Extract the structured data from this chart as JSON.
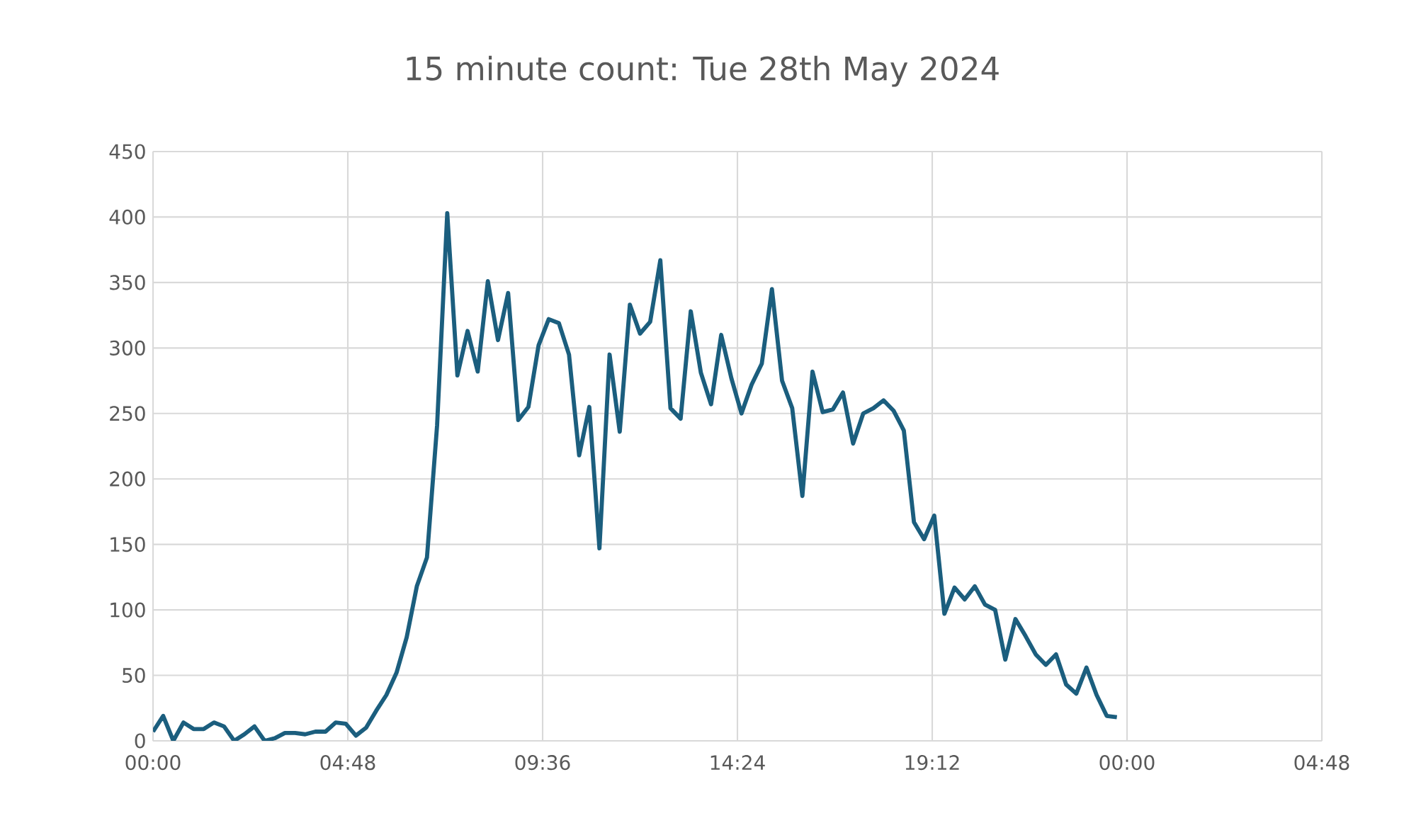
{
  "chart_data": {
    "type": "line",
    "title": "15 minute count: Tue 28th May 2024",
    "x": [
      "2024-05-28T00:00",
      "2024-05-28T00:15",
      "2024-05-28T00:30",
      "2024-05-28T00:45",
      "2024-05-28T01:00",
      "2024-05-28T01:15",
      "2024-05-28T01:30",
      "2024-05-28T01:45",
      "2024-05-28T02:00",
      "2024-05-28T02:15",
      "2024-05-28T02:30",
      "2024-05-28T02:45",
      "2024-05-28T03:00",
      "2024-05-28T03:15",
      "2024-05-28T03:30",
      "2024-05-28T03:45",
      "2024-05-28T04:00",
      "2024-05-28T04:15",
      "2024-05-28T04:30",
      "2024-05-28T04:45",
      "2024-05-28T05:00",
      "2024-05-28T05:15",
      "2024-05-28T05:30",
      "2024-05-28T05:45",
      "2024-05-28T06:00",
      "2024-05-28T06:15",
      "2024-05-28T06:30",
      "2024-05-28T06:45",
      "2024-05-28T07:00",
      "2024-05-28T07:15",
      "2024-05-28T07:30",
      "2024-05-28T07:45",
      "2024-05-28T08:00",
      "2024-05-28T08:15",
      "2024-05-28T08:30",
      "2024-05-28T08:45",
      "2024-05-28T09:00",
      "2024-05-28T09:15",
      "2024-05-28T09:30",
      "2024-05-28T09:45",
      "2024-05-28T10:00",
      "2024-05-28T10:15",
      "2024-05-28T10:30",
      "2024-05-28T10:45",
      "2024-05-28T11:00",
      "2024-05-28T11:15",
      "2024-05-28T11:30",
      "2024-05-28T11:45",
      "2024-05-28T12:00",
      "2024-05-28T12:15",
      "2024-05-28T12:30",
      "2024-05-28T12:45",
      "2024-05-28T13:00",
      "2024-05-28T13:15",
      "2024-05-28T13:30",
      "2024-05-28T13:45",
      "2024-05-28T14:00",
      "2024-05-28T14:15",
      "2024-05-28T14:30",
      "2024-05-28T14:45",
      "2024-05-28T15:00",
      "2024-05-28T15:15",
      "2024-05-28T15:30",
      "2024-05-28T15:45",
      "2024-05-28T16:00",
      "2024-05-28T16:15",
      "2024-05-28T16:30",
      "2024-05-28T16:45",
      "2024-05-28T17:00",
      "2024-05-28T17:15",
      "2024-05-28T17:30",
      "2024-05-28T17:45",
      "2024-05-28T18:00",
      "2024-05-28T18:15",
      "2024-05-28T18:30",
      "2024-05-28T18:45",
      "2024-05-28T19:00",
      "2024-05-28T19:15",
      "2024-05-28T19:30",
      "2024-05-28T19:45",
      "2024-05-28T20:00",
      "2024-05-28T20:15",
      "2024-05-28T20:30",
      "2024-05-28T20:45",
      "2024-05-28T21:00",
      "2024-05-28T21:15",
      "2024-05-28T21:30",
      "2024-05-28T21:45",
      "2024-05-28T22:00",
      "2024-05-28T22:15",
      "2024-05-28T22:30",
      "2024-05-28T22:45",
      "2024-05-28T23:00",
      "2024-05-28T23:15",
      "2024-05-28T23:30",
      "2024-05-28T23:45"
    ],
    "series": [
      {
        "color": "#1b5e7e",
        "values": [
          7,
          19,
          0,
          14,
          9,
          9,
          14,
          11,
          0,
          5,
          11,
          0,
          2,
          6,
          6,
          5,
          7,
          7,
          14,
          13,
          4,
          10,
          23,
          35,
          52,
          79,
          118,
          140,
          241,
          403,
          279,
          313,
          282,
          351,
          306,
          342,
          245,
          255,
          302,
          322,
          319,
          295,
          218,
          255,
          147,
          295,
          236,
          333,
          311,
          320,
          367,
          254,
          246,
          328,
          281,
          257,
          310,
          277,
          250,
          272,
          288,
          345,
          275,
          254,
          187,
          282,
          251,
          253,
          266,
          227,
          250,
          254,
          260,
          252,
          237,
          167,
          154,
          172,
          97,
          117,
          108,
          118,
          104,
          100,
          62,
          93,
          80,
          66,
          58,
          66,
          43,
          36,
          56,
          35,
          19,
          18
        ]
      }
    ],
    "xlim": [
      "2024-05-28T00:00",
      "2024-05-29T04:48"
    ],
    "xticks": [
      {
        "value": "2024-05-28T00:00",
        "label": "00:00"
      },
      {
        "value": "2024-05-28T04:48",
        "label": "04:48"
      },
      {
        "value": "2024-05-28T09:36",
        "label": "09:36"
      },
      {
        "value": "2024-05-28T14:24",
        "label": "14:24"
      },
      {
        "value": "2024-05-28T19:12",
        "label": "19:12"
      },
      {
        "value": "2024-05-29T00:00",
        "label": "00:00"
      },
      {
        "value": "2024-05-29T04:48",
        "label": "04:48"
      }
    ],
    "ylim": [
      0,
      450
    ],
    "yticks": [
      0,
      50,
      100,
      150,
      200,
      250,
      300,
      350,
      400,
      450
    ],
    "grid": true,
    "marker": "none",
    "line_style": "solid"
  }
}
